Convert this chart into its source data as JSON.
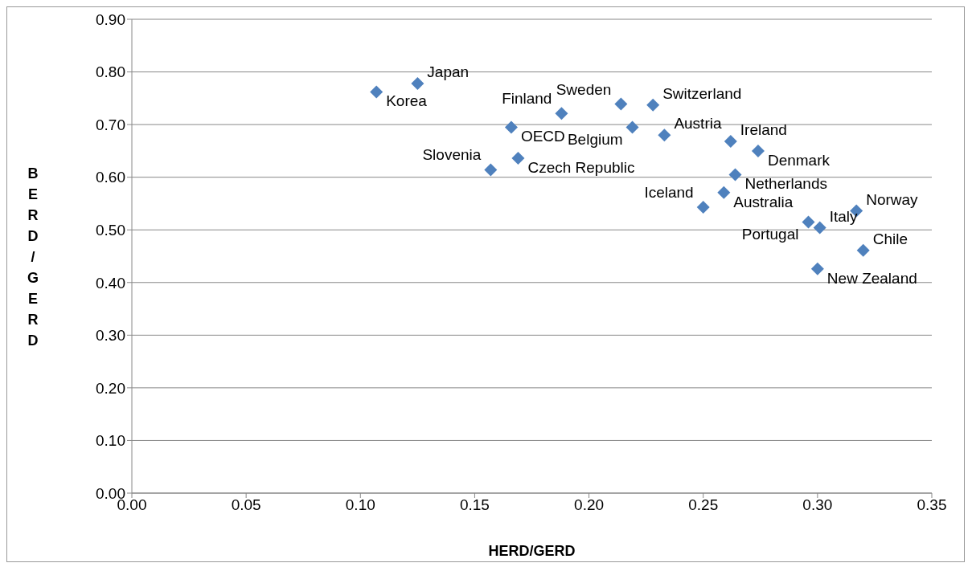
{
  "chart_data": {
    "type": "scatter",
    "xlabel": "HERD/GERD",
    "ylabel": "BERD/GERD",
    "marker": "diamond",
    "grid": "y",
    "xlim": [
      0,
      0.35
    ],
    "xticks": [
      {
        "value": 0,
        "label": "0.00"
      },
      {
        "value": 0.05,
        "label": "0.05"
      },
      {
        "value": 0.1,
        "label": "0.10"
      },
      {
        "value": 0.15,
        "label": "0.15"
      },
      {
        "value": 0.2,
        "label": "0.20"
      },
      {
        "value": 0.25,
        "label": "0.25"
      },
      {
        "value": 0.3,
        "label": "0.30"
      },
      {
        "value": 0.35,
        "label": "0.35"
      }
    ],
    "ylim": [
      0,
      0.9
    ],
    "yticks": [
      {
        "value": 0,
        "label": "0.00"
      },
      {
        "value": 0.1,
        "label": "0.10"
      },
      {
        "value": 0.2,
        "label": "0.20"
      },
      {
        "value": 0.3,
        "label": "0.30"
      },
      {
        "value": 0.4,
        "label": "0.40"
      },
      {
        "value": 0.5,
        "label": "0.50"
      },
      {
        "value": 0.6,
        "label": "0.60"
      },
      {
        "value": 0.7,
        "label": "0.70"
      },
      {
        "value": 0.8,
        "label": "0.80"
      },
      {
        "value": 0.9,
        "label": "0.90"
      }
    ],
    "series": [
      {
        "color": "#4f81bd",
        "x": [
          0.107,
          0.125,
          0.188,
          0.166,
          0.169,
          0.157,
          0.214,
          0.228,
          0.219,
          0.233,
          0.262,
          0.274,
          0.264,
          0.259,
          0.25,
          0.317,
          0.296,
          0.301,
          0.32,
          0.3
        ],
        "values": [
          0.762,
          0.778,
          0.721,
          0.695,
          0.636,
          0.614,
          0.739,
          0.737,
          0.695,
          0.68,
          0.668,
          0.65,
          0.605,
          0.571,
          0.543,
          0.536,
          0.515,
          0.504,
          0.461,
          0.426
        ]
      }
    ],
    "annotations": [
      {
        "text": "Korea",
        "x": 0.107,
        "y": 0.762
      },
      {
        "text": "Japan",
        "x": 0.125,
        "y": 0.778
      },
      {
        "text": "Finland",
        "x": 0.188,
        "y": 0.721
      },
      {
        "text": "OECD",
        "x": 0.166,
        "y": 0.695
      },
      {
        "text": "Czech Republic",
        "x": 0.169,
        "y": 0.636
      },
      {
        "text": "Slovenia",
        "x": 0.157,
        "y": 0.614
      },
      {
        "text": "Sweden",
        "x": 0.214,
        "y": 0.739
      },
      {
        "text": "Switzerland",
        "x": 0.228,
        "y": 0.737
      },
      {
        "text": "Belgium",
        "x": 0.219,
        "y": 0.695
      },
      {
        "text": "Austria",
        "x": 0.233,
        "y": 0.68
      },
      {
        "text": "Ireland",
        "x": 0.262,
        "y": 0.668
      },
      {
        "text": "Denmark",
        "x": 0.274,
        "y": 0.65
      },
      {
        "text": "Netherlands",
        "x": 0.264,
        "y": 0.605
      },
      {
        "text": "Australia",
        "x": 0.259,
        "y": 0.571
      },
      {
        "text": "Iceland",
        "x": 0.25,
        "y": 0.543
      },
      {
        "text": "Norway",
        "x": 0.317,
        "y": 0.536
      },
      {
        "text": "Portugal",
        "x": 0.296,
        "y": 0.515
      },
      {
        "text": "Italy",
        "x": 0.301,
        "y": 0.504
      },
      {
        "text": "Chile",
        "x": 0.32,
        "y": 0.461
      },
      {
        "text": "New Zealand",
        "x": 0.3,
        "y": 0.426
      }
    ]
  }
}
